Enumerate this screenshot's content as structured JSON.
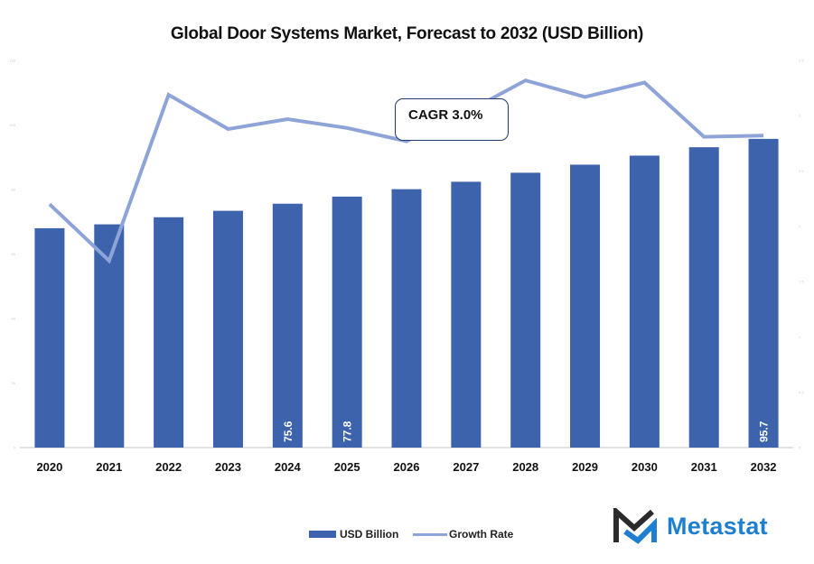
{
  "chart_data": {
    "type": "bar",
    "title": "Global Door Systems Market, Forecast to 2032 (USD Billion)",
    "xlabel": "",
    "ylabel": "",
    "categories": [
      "2020",
      "2021",
      "2022",
      "2023",
      "2024",
      "2025",
      "2026",
      "2027",
      "2028",
      "2029",
      "2030",
      "2031",
      "2032"
    ],
    "series": [
      {
        "name": "USD Billion",
        "type": "bar",
        "axis": "left",
        "color": "#3c63ac",
        "values": [
          68.0,
          69.2,
          71.4,
          73.4,
          75.6,
          77.8,
          80.1,
          82.4,
          85.2,
          87.7,
          90.5,
          93.1,
          95.7
        ],
        "labels": {
          "4": "75.6",
          "5": "77.8",
          "12": "95.7"
        }
      },
      {
        "name": "Growth Rate",
        "type": "line",
        "axis": "right",
        "color": "#8ea4d8",
        "values": [
          2.2,
          1.69,
          3.19,
          2.88,
          2.97,
          2.89,
          2.77,
          3.03,
          3.32,
          3.17,
          3.3,
          2.81,
          2.82
        ]
      }
    ],
    "ylim": [
      0,
      120
    ],
    "y_ticks": [
      0,
      20,
      40,
      60,
      80,
      100,
      120
    ],
    "y2lim": [
      0,
      3.5
    ],
    "y2_ticks": [
      0,
      0.5,
      1.0,
      1.5,
      2.0,
      2.5,
      3.0,
      3.5
    ],
    "grid": false,
    "legend": "bottom-center",
    "annotation": "CAGR 3.0%"
  },
  "legend": {
    "bar_label": "USD Billion",
    "line_label": "Growth Rate"
  },
  "brand": {
    "name": "Metastat",
    "logo_icon": "metastat-m-icon",
    "color": "#1e7fd0"
  }
}
